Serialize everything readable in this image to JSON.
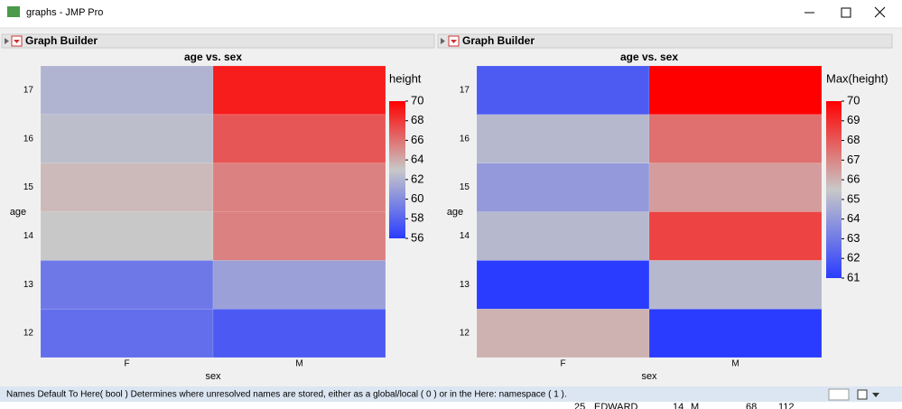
{
  "window_title": "graphs - JMP Pro",
  "status_bar": "Names Default To Here( bool )  Determines where unresolved names are stored, either as a global/local ( 0 ) or in the Here: namespace ( 1 ).",
  "background_row": [
    "25",
    "EDWARD",
    "14",
    "M",
    "68",
    "112"
  ],
  "chart_data": [
    {
      "type": "heatmap",
      "header": "Graph Builder",
      "title": "age vs. sex",
      "x_label": "sex",
      "y_label": "age",
      "categories": [
        "F",
        "M"
      ],
      "y_categories": [
        "12",
        "13",
        "14",
        "15",
        "16",
        "17"
      ],
      "values": [
        [
          58.5,
          57.5
        ],
        [
          59,
          61
        ],
        [
          63,
          65.5
        ],
        [
          63.5,
          65.5
        ],
        [
          62.5,
          67
        ],
        [
          62,
          69
        ]
      ],
      "color_label": "height",
      "clim": [
        56,
        70
      ],
      "cticks": [
        56,
        58,
        60,
        62,
        64,
        66,
        68,
        70
      ],
      "colors": [
        "#2a3cff",
        "#c8c8c8",
        "#ff0000"
      ]
    },
    {
      "type": "heatmap",
      "header": "Graph Builder",
      "title": "age vs. sex",
      "x_label": "sex",
      "y_label": "age",
      "categories": [
        "F",
        "M"
      ],
      "y_categories": [
        "12",
        "13",
        "14",
        "15",
        "16",
        "17"
      ],
      "values": [
        [
          66,
          61
        ],
        [
          61,
          65
        ],
        [
          65,
          68.5
        ],
        [
          64,
          66.5
        ],
        [
          65,
          67.5
        ],
        [
          62,
          70
        ]
      ],
      "color_label": "Max(height)",
      "clim": [
        61,
        70
      ],
      "cticks": [
        61,
        62,
        63,
        64,
        65,
        66,
        67,
        68,
        69,
        70
      ],
      "colors": [
        "#2a3cff",
        "#c8c8c8",
        "#ff0000"
      ]
    }
  ]
}
